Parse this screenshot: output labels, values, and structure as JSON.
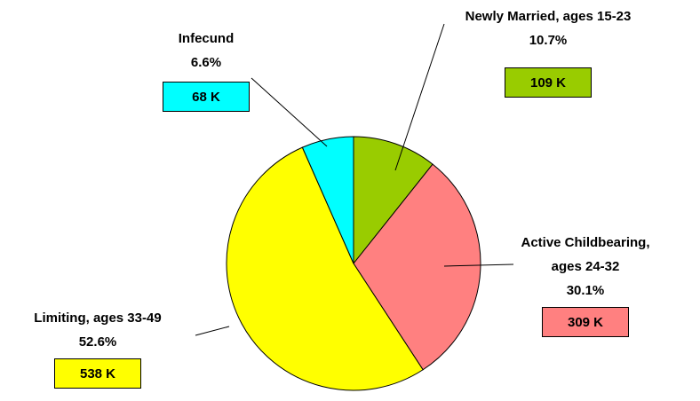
{
  "chart_data": {
    "type": "pie",
    "categories": [
      "Newly Married, ages 15-23",
      "Active Childbearing, ages 24-32",
      "Limiting, ages 33-49",
      "Infecund"
    ],
    "values": [
      10.7,
      30.1,
      52.6,
      6.6
    ],
    "value_labels": [
      "10.7%",
      "30.1%",
      "52.6%",
      "6.6%"
    ],
    "count_labels": [
      "109 K",
      "309 K",
      "538 K",
      "68 K"
    ],
    "colors": [
      "#99cc00",
      "#ff8080",
      "#ffff00",
      "#00ffff"
    ]
  }
}
